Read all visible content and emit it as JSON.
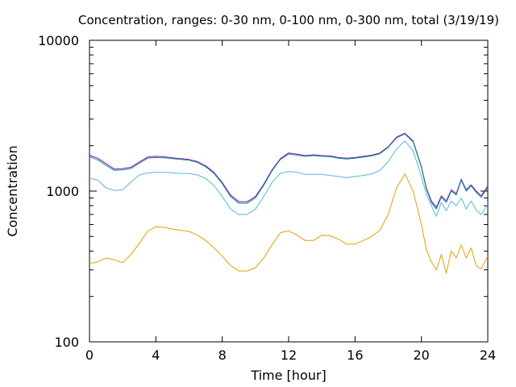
{
  "chart_data": {
    "type": "line",
    "title": "Concentration, ranges: 0-30 nm, 0-100 nm, 0-300 nm, total (3/19/19)",
    "xlabel": "Time [hour]",
    "ylabel": "Concentration",
    "xlim": [
      0,
      24
    ],
    "ylim": [
      100,
      10000
    ],
    "yscale": "log",
    "xticks": [
      0,
      4,
      8,
      12,
      16,
      20,
      24
    ],
    "xtick_labels": [
      "0",
      "4",
      "8",
      "12",
      "16",
      "20",
      "24"
    ],
    "yticks": [
      100,
      1000,
      10000
    ],
    "ytick_labels": [
      "100",
      "1000",
      "10000"
    ],
    "grid": false,
    "legend": "none",
    "series": [
      {
        "color": "#e69f00",
        "x": [
          0,
          0.5,
          1.0,
          1.5,
          2.0,
          2.5,
          3.0,
          3.5,
          4.0,
          4.5,
          5.0,
          5.5,
          6.0,
          6.5,
          7.0,
          7.5,
          8.0,
          8.5,
          9.0,
          9.5,
          10.0,
          10.5,
          11.0,
          11.5,
          12.0,
          12.5,
          13.0,
          13.5,
          14.0,
          14.5,
          15.0,
          15.5,
          16.0,
          16.5,
          17.0,
          17.5,
          18.0,
          18.5,
          19.0,
          19.5,
          20.0,
          20.3,
          20.6,
          20.9,
          21.2,
          21.5,
          21.8,
          22.1,
          22.4,
          22.7,
          23.0,
          23.3,
          23.6,
          24.0
        ],
        "values": [
          330,
          340,
          360,
          350,
          335,
          380,
          450,
          540,
          580,
          575,
          560,
          550,
          540,
          510,
          470,
          420,
          370,
          320,
          295,
          295,
          310,
          360,
          440,
          530,
          545,
          510,
          470,
          470,
          510,
          505,
          480,
          445,
          445,
          470,
          500,
          550,
          700,
          1050,
          1300,
          1000,
          600,
          410,
          340,
          300,
          380,
          285,
          400,
          360,
          440,
          360,
          420,
          320,
          305,
          370
        ]
      },
      {
        "color": "#56b4e9",
        "x": [
          0,
          0.5,
          1.0,
          1.5,
          2.0,
          2.5,
          3.0,
          3.5,
          4.0,
          4.5,
          5.0,
          5.5,
          6.0,
          6.5,
          7.0,
          7.5,
          8.0,
          8.5,
          9.0,
          9.5,
          10.0,
          10.5,
          11.0,
          11.5,
          12.0,
          12.5,
          13.0,
          13.5,
          14.0,
          14.5,
          15.0,
          15.5,
          16.0,
          16.5,
          17.0,
          17.5,
          18.0,
          18.5,
          19.0,
          19.5,
          20.0,
          20.3,
          20.6,
          20.9,
          21.2,
          21.5,
          21.8,
          22.1,
          22.4,
          22.7,
          23.0,
          23.3,
          23.6,
          24.0
        ],
        "values": [
          1220,
          1180,
          1050,
          1010,
          1020,
          1150,
          1280,
          1320,
          1330,
          1330,
          1320,
          1310,
          1310,
          1280,
          1210,
          1090,
          920,
          760,
          700,
          700,
          760,
          920,
          1140,
          1310,
          1350,
          1330,
          1290,
          1290,
          1290,
          1270,
          1250,
          1230,
          1250,
          1270,
          1300,
          1370,
          1570,
          1900,
          2150,
          1850,
          1250,
          950,
          800,
          680,
          840,
          740,
          860,
          800,
          900,
          760,
          860,
          750,
          700,
          820
        ]
      },
      {
        "color": "#9400d3",
        "x": [
          0,
          0.5,
          1.0,
          1.5,
          2.0,
          2.5,
          3.0,
          3.5,
          4.0,
          4.5,
          5.0,
          5.5,
          6.0,
          6.5,
          7.0,
          7.5,
          8.0,
          8.5,
          9.0,
          9.5,
          10.0,
          10.5,
          11.0,
          11.5,
          12.0,
          12.5,
          13.0,
          13.5,
          14.0,
          14.5,
          15.0,
          15.5,
          16.0,
          16.5,
          17.0,
          17.5,
          18.0,
          18.5,
          19.0,
          19.5,
          20.0,
          20.3,
          20.6,
          20.9,
          21.2,
          21.5,
          21.8,
          22.1,
          22.4,
          22.7,
          23.0,
          23.3,
          23.6,
          24.0
        ],
        "values": [
          1730,
          1650,
          1520,
          1400,
          1410,
          1440,
          1560,
          1680,
          1700,
          1690,
          1660,
          1640,
          1620,
          1570,
          1470,
          1330,
          1140,
          940,
          850,
          850,
          920,
          1110,
          1380,
          1640,
          1790,
          1760,
          1720,
          1740,
          1720,
          1710,
          1670,
          1650,
          1670,
          1700,
          1730,
          1790,
          1970,
          2280,
          2420,
          2150,
          1450,
          1050,
          860,
          780,
          930,
          860,
          1020,
          960,
          1200,
          1020,
          1100,
          1000,
          930,
          1080
        ]
      },
      {
        "color": "#009e73",
        "x": [
          0,
          0.5,
          1.0,
          1.5,
          2.0,
          2.5,
          3.0,
          3.5,
          4.0,
          4.5,
          5.0,
          5.5,
          6.0,
          6.5,
          7.0,
          7.5,
          8.0,
          8.5,
          9.0,
          9.5,
          10.0,
          10.5,
          11.0,
          11.5,
          12.0,
          12.5,
          13.0,
          13.5,
          14.0,
          14.5,
          15.0,
          15.5,
          16.0,
          16.5,
          17.0,
          17.5,
          18.0,
          18.5,
          19.0,
          19.5,
          20.0,
          20.3,
          20.6,
          20.9,
          21.2,
          21.5,
          21.8,
          22.1,
          22.4,
          22.7,
          23.0,
          23.3,
          23.6,
          24.0
        ],
        "values": [
          1690,
          1610,
          1480,
          1370,
          1380,
          1410,
          1530,
          1650,
          1670,
          1660,
          1640,
          1620,
          1600,
          1550,
          1450,
          1310,
          1120,
          920,
          830,
          830,
          900,
          1090,
          1360,
          1620,
          1760,
          1730,
          1700,
          1720,
          1700,
          1690,
          1650,
          1630,
          1650,
          1680,
          1710,
          1770,
          1950,
          2250,
          2390,
          2120,
          1430,
          1030,
          840,
          760,
          910,
          840,
          1000,
          940,
          1180,
          1000,
          1080,
          980,
          910,
          1060
        ]
      }
    ]
  }
}
